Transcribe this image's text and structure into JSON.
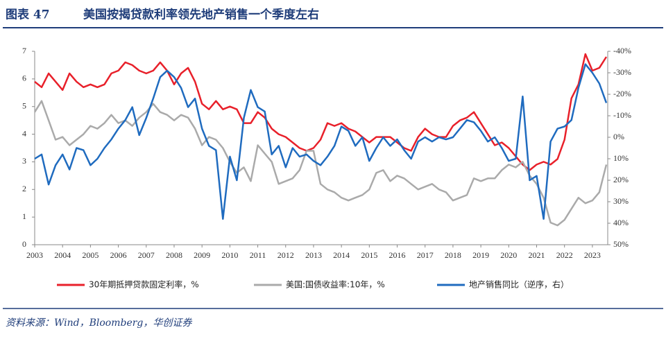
{
  "header": {
    "figure_label": "图表 47",
    "title": "美国按揭贷款利率领先地产销售一个季度左右"
  },
  "chart_data": {
    "type": "line",
    "x": [
      2003,
      2003.25,
      2003.5,
      2003.75,
      2004,
      2004.25,
      2004.5,
      2004.75,
      2005,
      2005.25,
      2005.5,
      2005.75,
      2006,
      2006.25,
      2006.5,
      2006.75,
      2007,
      2007.25,
      2007.5,
      2007.75,
      2008,
      2008.25,
      2008.5,
      2008.75,
      2009,
      2009.25,
      2009.5,
      2009.75,
      2010,
      2010.25,
      2010.5,
      2010.75,
      2011,
      2011.25,
      2011.5,
      2011.75,
      2012,
      2012.25,
      2012.5,
      2012.75,
      2013,
      2013.25,
      2013.5,
      2013.75,
      2014,
      2014.25,
      2014.5,
      2014.75,
      2015,
      2015.25,
      2015.5,
      2015.75,
      2016,
      2016.25,
      2016.5,
      2016.75,
      2017,
      2017.25,
      2017.5,
      2017.75,
      2018,
      2018.25,
      2018.5,
      2018.75,
      2019,
      2019.25,
      2019.5,
      2019.75,
      2020,
      2020.25,
      2020.5,
      2020.75,
      2021,
      2021.25,
      2021.5,
      2021.75,
      2022,
      2022.25,
      2022.5,
      2022.75,
      2023,
      2023.25,
      2023.5
    ],
    "series": [
      {
        "name": "30年期抵押贷款固定利率，%",
        "color": "#e8202a",
        "values": [
          5.9,
          5.7,
          6.2,
          5.9,
          5.6,
          6.2,
          5.9,
          5.7,
          5.8,
          5.7,
          5.8,
          6.2,
          6.3,
          6.6,
          6.5,
          6.3,
          6.2,
          6.3,
          6.6,
          6.3,
          5.8,
          6.2,
          6.4,
          5.9,
          5.1,
          4.9,
          5.2,
          4.9,
          5.0,
          4.9,
          4.4,
          4.4,
          4.8,
          4.6,
          4.2,
          4.0,
          3.9,
          3.7,
          3.5,
          3.4,
          3.5,
          3.8,
          4.4,
          4.3,
          4.4,
          4.2,
          4.1,
          3.9,
          3.7,
          3.9,
          3.9,
          3.9,
          3.7,
          3.5,
          3.4,
          3.9,
          4.2,
          4.0,
          3.9,
          3.9,
          4.3,
          4.5,
          4.6,
          4.8,
          4.4,
          4.0,
          3.6,
          3.7,
          3.5,
          3.2,
          2.9,
          2.7,
          2.9,
          3.0,
          2.9,
          3.1,
          3.8,
          5.3,
          5.8,
          6.9,
          6.3,
          6.4,
          6.8
        ]
      },
      {
        "name": "美国:国债收益率:10年，%",
        "color": "#aaaaaa",
        "values": [
          4.8,
          5.2,
          4.5,
          3.8,
          3.9,
          3.6,
          3.8,
          4.0,
          4.3,
          4.2,
          4.4,
          4.7,
          4.4,
          4.5,
          4.3,
          4.6,
          4.8,
          5.1,
          4.8,
          4.7,
          4.5,
          4.7,
          4.6,
          4.2,
          3.6,
          3.9,
          3.8,
          3.5,
          3.0,
          2.6,
          2.8,
          2.3,
          3.6,
          3.3,
          3.0,
          2.2,
          2.3,
          2.4,
          2.7,
          3.4,
          3.4,
          2.2,
          2.0,
          1.9,
          1.7,
          1.6,
          1.7,
          1.8,
          2.0,
          2.6,
          2.7,
          2.3,
          2.5,
          2.4,
          2.2,
          2.0,
          2.1,
          2.2,
          2.0,
          1.9,
          1.6,
          1.7,
          1.8,
          2.4,
          2.3,
          2.4,
          2.4,
          2.7,
          2.9,
          2.8,
          3.0,
          2.5,
          2.2,
          1.7,
          0.8,
          0.7,
          0.9,
          1.3,
          1.7,
          1.5,
          1.6,
          1.9,
          2.9
        ]
      },
      {
        "name": "地产销售同比（逆序，右）",
        "color": "#1f6bbf",
        "axis": "y2",
        "values": [
          10,
          8,
          22,
          13,
          8,
          15,
          5,
          6,
          13,
          10,
          5,
          1,
          -4,
          -8,
          -14,
          -1,
          -9,
          -18,
          -28,
          -31,
          -28,
          -23,
          -14,
          -18,
          -4,
          4,
          6,
          38,
          9,
          20,
          -9,
          -22,
          -14,
          -12,
          8,
          4,
          14,
          5,
          9,
          8,
          11,
          13,
          9,
          4,
          -5,
          -3,
          4,
          0,
          11,
          5,
          0,
          4,
          1,
          6,
          10,
          2,
          0,
          2,
          0,
          1,
          0,
          -4,
          -8,
          -7,
          -3,
          2,
          0,
          5,
          11,
          10,
          -19,
          20,
          18,
          38,
          2,
          -4,
          -5,
          -8,
          -23,
          -34,
          -30,
          -25,
          -16
        ]
      }
    ],
    "xlim": [
      2003,
      2023.55
    ],
    "xticks": [
      2003,
      2004,
      2005,
      2006,
      2007,
      2008,
      2009,
      2010,
      2011,
      2012,
      2013,
      2014,
      2015,
      2016,
      2017,
      2018,
      2019,
      2020,
      2021,
      2022,
      2023
    ],
    "ylim": [
      0,
      7
    ],
    "yticks": [
      0,
      1,
      2,
      3,
      4,
      5,
      6,
      7
    ],
    "y2lim": [
      -40,
      50
    ],
    "y2_inverted": true,
    "y2ticks": [
      {
        "value": -40,
        "label": "-40%"
      },
      {
        "value": -30,
        "label": "-30%"
      },
      {
        "value": -20,
        "label": "-20%"
      },
      {
        "value": -10,
        "label": "-10%"
      },
      {
        "value": 0,
        "label": "0%"
      },
      {
        "value": 10,
        "label": "10%"
      },
      {
        "value": 20,
        "label": "20%"
      },
      {
        "value": 30,
        "label": "30%"
      },
      {
        "value": 40,
        "label": "40%"
      },
      {
        "value": 50,
        "label": "50%"
      }
    ],
    "legend": "bottom"
  },
  "source": "资料来源：Wind，Bloomberg，华创证券"
}
